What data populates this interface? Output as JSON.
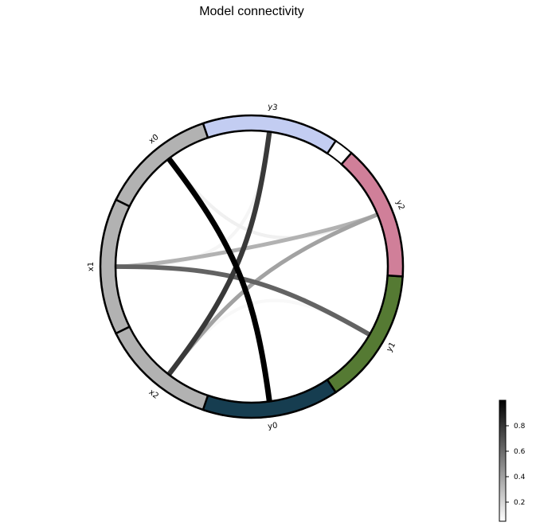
{
  "chart_data": {
    "type": "chord",
    "title": "Model connectivity",
    "nodes": [
      {
        "name": "x0",
        "color": "#b2b2b2"
      },
      {
        "name": "x1",
        "color": "#b2b2b2"
      },
      {
        "name": "x2",
        "color": "#b2b2b2"
      },
      {
        "name": "y0",
        "color": "#163d50"
      },
      {
        "name": "y1",
        "color": "#557a33"
      },
      {
        "name": "y2",
        "color": "#d07f99"
      },
      {
        "name": "y3",
        "color": "#c3cdf2"
      }
    ],
    "links": [
      {
        "source": "x0",
        "target": "y0",
        "value": 1.0
      },
      {
        "source": "x0",
        "target": "y2",
        "value": 0.08
      },
      {
        "source": "x1",
        "target": "y1",
        "value": 0.62
      },
      {
        "source": "x1",
        "target": "y2",
        "value": 0.32
      },
      {
        "source": "x1",
        "target": "y3",
        "value": 0.06
      },
      {
        "source": "x2",
        "target": "y1",
        "value": 0.05
      },
      {
        "source": "x2",
        "target": "y2",
        "value": 0.38
      },
      {
        "source": "x2",
        "target": "y3",
        "value": 0.78
      }
    ],
    "colorbar": {
      "ticks": [
        0.2,
        0.4,
        0.6,
        0.8
      ],
      "range": [
        0.05,
        1.0
      ],
      "colormap": "white-to-black"
    }
  }
}
